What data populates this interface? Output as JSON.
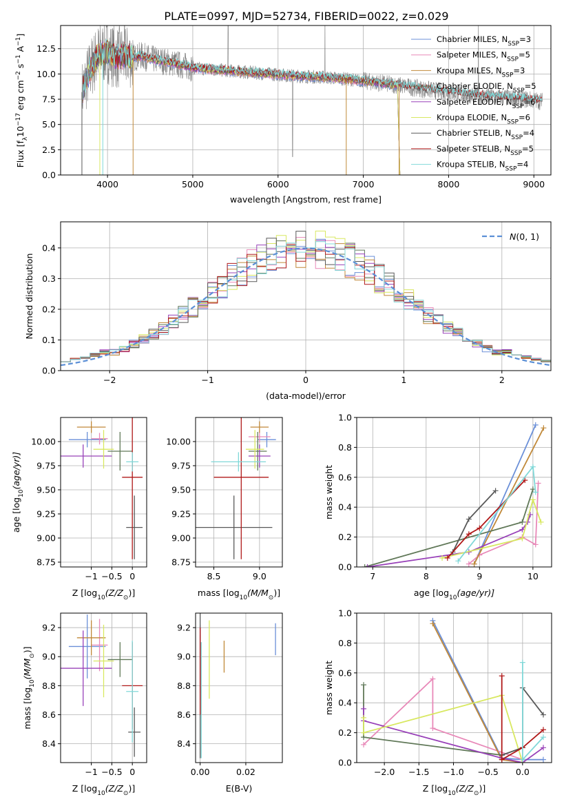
{
  "figure": {
    "title": "PLATE=0997, MJD=52734, FIBERID=0022, z=0.029"
  },
  "colors": {
    "models": [
      "#6a8fd8",
      "#e888b8",
      "#c08838",
      "#607858",
      "#9840b8",
      "#d8e860",
      "#585858",
      "#b01818",
      "#80d8d8"
    ],
    "gaussian": "#5b8fd6",
    "spectrum": "#808080",
    "grid": "#b0b0b0",
    "axis": "#000000"
  },
  "chart_data": [
    {
      "id": "spectrum",
      "type": "line",
      "xlabel": "wavelength [Angstrom, rest frame]",
      "ylabel": "Flux [f",
      "ylabel_parts": [
        "Flux [f",
        "λ",
        "10",
        "−17",
        " erg cm",
        "−2",
        " s",
        "−1",
        " A",
        "−1",
        "]"
      ],
      "xlim": [
        3450,
        9200
      ],
      "ylim": [
        0,
        14.8
      ],
      "xticks": [
        4000,
        5000,
        6000,
        7000,
        8000,
        9000
      ],
      "yticks": [
        0.0,
        2.5,
        5.0,
        7.5,
        10.0,
        12.5
      ],
      "ytick_labels": [
        "0.0",
        "2.5",
        "5.0",
        "7.5",
        "10.0",
        "12.5"
      ],
      "legend_position": "top-right",
      "continuum": {
        "x": [
          3700,
          3800,
          3900,
          4000,
          4100,
          4200,
          4300,
          4400,
          4500,
          4700,
          5000,
          5300,
          5600,
          5900,
          6200,
          6500,
          6800,
          7100,
          7400,
          7700,
          8000,
          8300,
          8600,
          8900,
          9100
        ],
        "y": [
          8.2,
          10.5,
          12.0,
          12.2,
          11.6,
          11.8,
          11.6,
          11.8,
          11.5,
          11.2,
          10.6,
          10.4,
          10.2,
          10.0,
          9.8,
          9.7,
          9.5,
          9.2,
          8.9,
          8.5,
          8.2,
          7.9,
          7.7,
          7.5,
          7.3
        ]
      },
      "model_end": 7430,
      "legend": [
        {
          "base": "Chabrier MILES, N",
          "sub": "SSP",
          "tail": "=3"
        },
        {
          "base": "Salpeter MILES, N",
          "sub": "SSP",
          "tail": "=5"
        },
        {
          "base": "Kroupa MILES, N",
          "sub": "SSP",
          "tail": "=3"
        },
        {
          "base": "Chabrier ELODIE, N",
          "sub": "SSP",
          "tail": "=5"
        },
        {
          "base": "Salpeter ELODIE, N",
          "sub": "SSP",
          "tail": "=6"
        },
        {
          "base": "Kroupa ELODIE, N",
          "sub": "SSP",
          "tail": "=6"
        },
        {
          "base": "Chabrier STELIB, N",
          "sub": "SSP",
          "tail": "=4"
        },
        {
          "base": "Salpeter STELIB, N",
          "sub": "SSP",
          "tail": "=5"
        },
        {
          "base": "Kroupa STELIB, N",
          "sub": "SSP",
          "tail": "=4"
        }
      ]
    },
    {
      "id": "residual-histogram",
      "type": "histogram",
      "xlabel": "(data-model)/error",
      "ylabel": "Normed distribution",
      "xlim": [
        -2.5,
        2.5
      ],
      "ylim": [
        0,
        0.485
      ],
      "xticks": [
        -2,
        -1,
        0,
        1,
        2
      ],
      "xtick_labels": [
        "−2",
        "−1",
        "0",
        "1",
        "2"
      ],
      "yticks": [
        0.0,
        0.1,
        0.2,
        0.3,
        0.4
      ],
      "ytick_labels": [
        "0.0",
        "0.1",
        "0.2",
        "0.3",
        "0.4"
      ],
      "bin_width": 0.1,
      "legend_label": "N(0,1)",
      "legend_position": "top-right"
    },
    {
      "id": "age-vs-z",
      "type": "errorbar",
      "xlabel": "Z [log",
      "xlabel_parts": [
        "Z [log",
        "10",
        "(Z/Z",
        "⊙",
        ")]"
      ],
      "ylabel_parts": [
        "age  [log",
        "10",
        "(age/yr)]"
      ],
      "xlim": [
        -1.75,
        0.35
      ],
      "ylim": [
        8.7,
        10.25
      ],
      "xticks": [
        -1,
        -0.5,
        0
      ],
      "xtick_labels": [
        "−1",
        "−0.5",
        "0"
      ],
      "yticks": [
        8.75,
        9.0,
        9.25,
        9.5,
        9.75,
        10.0
      ],
      "ytick_labels": [
        "8.75",
        "9.00",
        "9.25",
        "9.50",
        "9.75",
        "10.00"
      ],
      "points": [
        {
          "x": -1.1,
          "y": 10.02,
          "xerr": 0.45,
          "yerr": 0.08
        },
        {
          "x": -0.8,
          "y": 10.03,
          "xerr": 0.2,
          "yerr": 0.06
        },
        {
          "x": -1.0,
          "y": 10.15,
          "xerr": 0.35,
          "yerr": 0.06
        },
        {
          "x": -0.3,
          "y": 9.9,
          "xerr": 0.3,
          "yerr": 0.2
        },
        {
          "x": -1.2,
          "y": 9.85,
          "xerr": 0.7,
          "yerr": 0.12
        },
        {
          "x": -0.7,
          "y": 9.92,
          "xerr": 0.25,
          "yerr": 0.2
        },
        {
          "x": 0.05,
          "y": 9.11,
          "xerr": 0.2,
          "yerr": 0.33
        },
        {
          "x": 0.0,
          "y": 9.63,
          "xerr": 0.25,
          "yerr": 0.85
        },
        {
          "x": 0.0,
          "y": 9.79,
          "xerr": 0.15,
          "yerr": 0.1
        }
      ]
    },
    {
      "id": "age-vs-mass",
      "type": "errorbar",
      "xlabel_parts": [
        "mass [log",
        "10",
        "(M/M",
        "⊙",
        ")]"
      ],
      "xlim": [
        8.3,
        9.25
      ],
      "ylim": [
        8.7,
        10.25
      ],
      "xticks": [
        8.5,
        9.0
      ],
      "xtick_labels": [
        "8.5",
        "9.0"
      ],
      "yticks": [
        8.75,
        9.0,
        9.25,
        9.5,
        9.75,
        10.0
      ],
      "ytick_labels": [
        "8.75",
        "9.00",
        "9.25",
        "9.50",
        "9.75",
        "10.00"
      ],
      "points": [
        {
          "x": 9.08,
          "y": 10.02,
          "xerr": 0.1,
          "yerr": 0.08
        },
        {
          "x": 9.0,
          "y": 10.05,
          "xerr": 0.12,
          "yerr": 0.06
        },
        {
          "x": 9.0,
          "y": 10.15,
          "xerr": 0.1,
          "yerr": 0.06
        },
        {
          "x": 8.98,
          "y": 9.9,
          "xerr": 0.1,
          "yerr": 0.2
        },
        {
          "x": 9.0,
          "y": 9.85,
          "xerr": 0.12,
          "yerr": 0.12
        },
        {
          "x": 8.95,
          "y": 9.92,
          "xerr": 0.1,
          "yerr": 0.2
        },
        {
          "x": 8.72,
          "y": 9.11,
          "xerr": 0.42,
          "yerr": 0.33
        },
        {
          "x": 8.8,
          "y": 9.63,
          "xerr": 0.3,
          "yerr": 0.85
        },
        {
          "x": 8.77,
          "y": 9.79,
          "xerr": 0.3,
          "yerr": 0.1
        }
      ]
    },
    {
      "id": "weight-vs-age",
      "type": "line",
      "xlabel_parts": [
        "age  [log",
        "10",
        "(age/yr)]"
      ],
      "ylabel": "mass weight",
      "xlim": [
        6.7,
        10.35
      ],
      "ylim": [
        0,
        1.0
      ],
      "xticks": [
        7,
        8,
        9,
        10
      ],
      "xtick_labels": [
        "7",
        "8",
        "9",
        "10"
      ],
      "yticks": [
        0.0,
        0.2,
        0.4,
        0.6,
        0.8,
        1.0
      ],
      "ytick_labels": [
        "0.0",
        "0.2",
        "0.4",
        "0.6",
        "0.8",
        "1.0"
      ],
      "series": [
        {
          "x": [
            8.9,
            10.05
          ],
          "y": [
            0.02,
            0.95
          ]
        },
        {
          "x": [
            8.8,
            9.0,
            9.8,
            10.05,
            10.1
          ],
          "y": [
            0.02,
            0.08,
            0.2,
            0.15,
            0.56
          ]
        },
        {
          "x": [
            8.9,
            10.2
          ],
          "y": [
            0.02,
            0.93
          ]
        },
        {
          "x": [
            6.85,
            9.8,
            10.0
          ],
          "y": [
            0.0,
            0.3,
            0.52
          ]
        },
        {
          "x": [
            6.9,
            8.8,
            9.8,
            9.9,
            9.95
          ],
          "y": [
            0.0,
            0.1,
            0.25,
            0.3,
            0.35
          ]
        },
        {
          "x": [
            8.3,
            9.8,
            10.0,
            10.15
          ],
          "y": [
            0.06,
            0.19,
            0.45,
            0.3
          ]
        },
        {
          "x": [
            8.5,
            8.8,
            9.3
          ],
          "y": [
            0.1,
            0.32,
            0.51
          ]
        },
        {
          "x": [
            8.4,
            8.8,
            9.0,
            9.85
          ],
          "y": [
            0.06,
            0.22,
            0.26,
            0.58
          ]
        },
        {
          "x": [
            8.6,
            10.0,
            10.05
          ],
          "y": [
            0.04,
            0.67,
            0.5
          ]
        }
      ]
    },
    {
      "id": "mass-vs-z",
      "type": "errorbar",
      "xlabel_parts": [
        "Z [log",
        "10",
        "(Z/Z",
        "⊙",
        ")]"
      ],
      "ylabel_parts": [
        "mass [log",
        "10",
        "(M/M",
        "⊙",
        ")]"
      ],
      "xlim": [
        -1.75,
        0.35
      ],
      "ylim": [
        8.27,
        9.3
      ],
      "xticks": [
        -1,
        -0.5,
        0
      ],
      "xtick_labels": [
        "−1",
        "−0.5",
        "0"
      ],
      "yticks": [
        8.4,
        8.6,
        8.8,
        9.0,
        9.2
      ],
      "ytick_labels": [
        "8.4",
        "8.6",
        "8.8",
        "9.0",
        "9.2"
      ],
      "points": [
        {
          "x": -1.1,
          "y": 9.07,
          "xerr": 0.45,
          "yerr": 0.22
        },
        {
          "x": -0.8,
          "y": 9.08,
          "xerr": 0.2,
          "yerr": 0.18
        },
        {
          "x": -1.0,
          "y": 9.13,
          "xerr": 0.35,
          "yerr": 0.12
        },
        {
          "x": -0.3,
          "y": 8.98,
          "xerr": 0.3,
          "yerr": 0.12
        },
        {
          "x": -1.2,
          "y": 8.92,
          "xerr": 0.7,
          "yerr": 0.26
        },
        {
          "x": -0.7,
          "y": 8.97,
          "xerr": 0.25,
          "yerr": 0.25
        },
        {
          "x": 0.05,
          "y": 8.48,
          "xerr": 0.15,
          "yerr": 0.17
        },
        {
          "x": 0.0,
          "y": 8.8,
          "xerr": 0.25,
          "yerr": 0.3
        },
        {
          "x": 0.0,
          "y": 8.76,
          "xerr": 0.15,
          "yerr": 0.35
        }
      ]
    },
    {
      "id": "mass-vs-ebv",
      "type": "errorbar",
      "xlabel": "E(B-V)",
      "xlim": [
        -0.002,
        0.036
      ],
      "ylim": [
        8.27,
        9.3
      ],
      "xticks": [
        0.0,
        0.02
      ],
      "xtick_labels": [
        "0.00",
        "0.02"
      ],
      "yticks": [
        8.4,
        8.6,
        8.8,
        9.0,
        9.2
      ],
      "ytick_labels": [
        "8.4",
        "8.6",
        "8.8",
        "9.0",
        "9.2"
      ],
      "points": [
        {
          "x": 0.033,
          "y": 9.12,
          "xerr": 0,
          "yerr": 0.11
        },
        {
          "x": 0.0,
          "y": 9.1,
          "xerr": 0,
          "yerr": 0.12
        },
        {
          "x": 0.0105,
          "y": 9.0,
          "xerr": 0,
          "yerr": 0.11
        },
        {
          "x": 0.0,
          "y": 8.95,
          "xerr": 0,
          "yerr": 0.2
        },
        {
          "x": 0.0,
          "y": 8.95,
          "xerr": 0,
          "yerr": 0.25
        },
        {
          "x": 0.004,
          "y": 8.98,
          "xerr": 0,
          "yerr": 0.27
        },
        {
          "x": 0.0,
          "y": 8.8,
          "xerr": 0,
          "yerr": 0.5
        },
        {
          "x": 0.0,
          "y": 8.9,
          "xerr": 0,
          "yerr": 0.3
        },
        {
          "x": 0.0005,
          "y": 8.7,
          "xerr": 0,
          "yerr": 0.4
        }
      ]
    },
    {
      "id": "weight-vs-z",
      "type": "line",
      "xlabel_parts": [
        "Z [log",
        "10",
        "(Z/Z",
        "⊙",
        ")]"
      ],
      "ylabel": "mass weight",
      "xlim": [
        -2.4,
        0.42
      ],
      "ylim": [
        0,
        1.0
      ],
      "xticks": [
        -2.0,
        -1.5,
        -1.0,
        -0.5,
        0.0
      ],
      "xtick_labels": [
        "−2.0",
        "−1.5",
        "−1.0",
        "−0.5",
        "0.0"
      ],
      "yticks": [
        0.0,
        0.2,
        0.4,
        0.6,
        0.8,
        1.0
      ],
      "ytick_labels": [
        "0.0",
        "0.2",
        "0.4",
        "0.6",
        "0.8",
        "1.0"
      ],
      "series": [
        {
          "x": [
            -1.3,
            -0.3,
            0.0,
            0.3
          ],
          "y": [
            0.95,
            0.03,
            0.02,
            0.02
          ]
        },
        {
          "x": [
            -2.3,
            -1.3,
            -1.3,
            0.0
          ],
          "y": [
            0.12,
            0.56,
            0.23,
            0.02
          ]
        },
        {
          "x": [
            -1.3,
            -0.3,
            0.0
          ],
          "y": [
            0.93,
            0.02,
            0.0
          ]
        },
        {
          "x": [
            -2.3,
            -2.3,
            -0.3,
            0.0
          ],
          "y": [
            0.52,
            0.17,
            0.05,
            0.1
          ]
        },
        {
          "x": [
            -2.3,
            -2.3,
            -0.3,
            0.0,
            0.3
          ],
          "y": [
            0.36,
            0.28,
            0.03,
            0.0,
            0.1
          ]
        },
        {
          "x": [
            -2.3,
            -2.3,
            -0.3,
            0.0
          ],
          "y": [
            0.3,
            0.2,
            0.45,
            0.0
          ]
        },
        {
          "x": [
            -0.3,
            0.0,
            0.0,
            0.3
          ],
          "y": [
            0.05,
            0.1,
            0.5,
            0.32
          ]
        },
        {
          "x": [
            -0.3,
            -0.3,
            0.0,
            0.3
          ],
          "y": [
            0.58,
            0.02,
            0.1,
            0.22
          ]
        },
        {
          "x": [
            0.0,
            0.0,
            0.3
          ],
          "y": [
            0.67,
            0.02,
            0.17
          ]
        }
      ]
    }
  ]
}
